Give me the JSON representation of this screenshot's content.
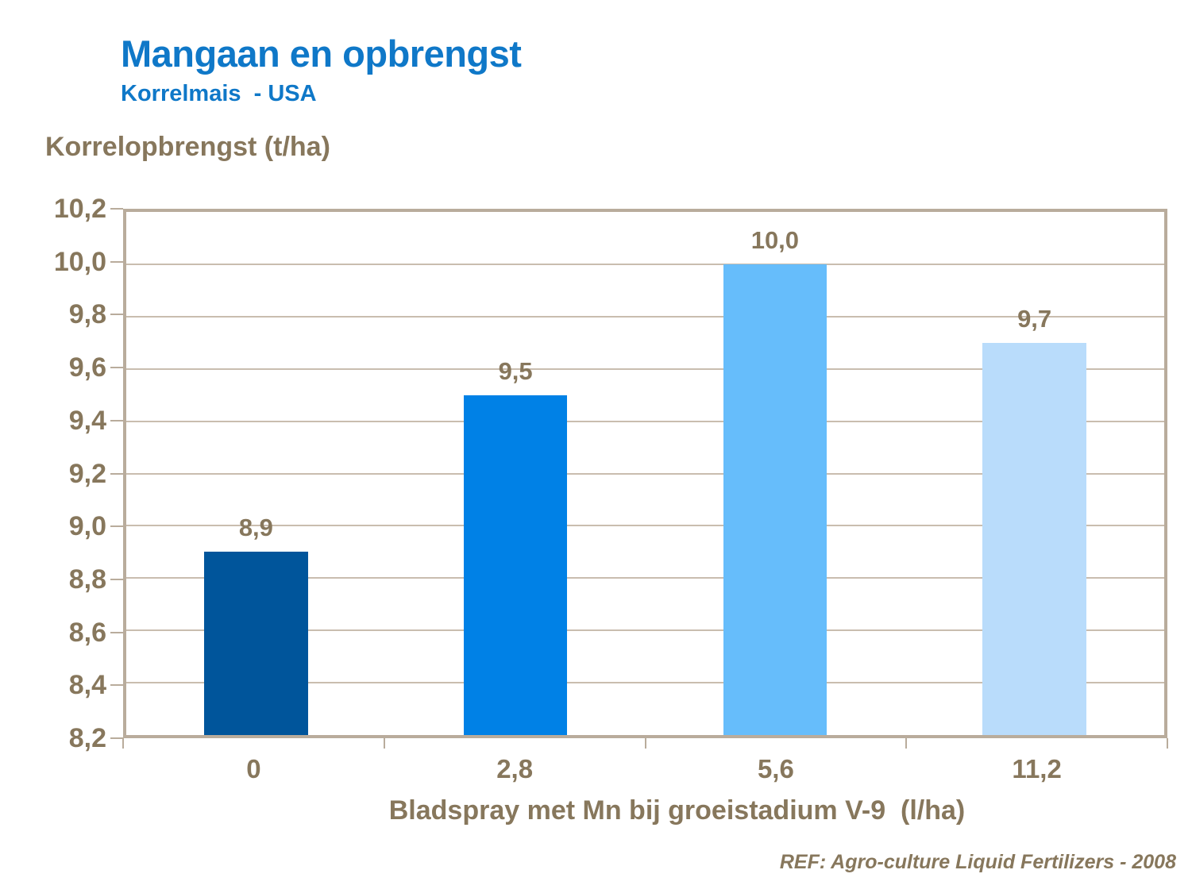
{
  "header": {
    "title": "Mangaan en opbrengst",
    "subtitle": "Korrelmais  - USA"
  },
  "footer": {
    "reference": "REF: Agro-culture Liquid Fertilizers - 2008"
  },
  "chart_data": {
    "type": "bar",
    "title": "Mangaan en opbrengst",
    "subtitle": "Korrelmais - USA",
    "ylabel": "Korrelopbrengst (t/ha)",
    "xlabel": "Bladspray met Mn bij groeistadium V-9  (l/ha)",
    "categories": [
      "0",
      "2,8",
      "5,6",
      "11,2"
    ],
    "values": [
      8.9,
      9.5,
      10.0,
      9.7
    ],
    "value_labels": [
      "8,9",
      "9,5",
      "10,0",
      "9,7"
    ],
    "ylim": [
      8.2,
      10.2
    ],
    "ytick_step": 0.2,
    "ytick_labels": [
      "8,2",
      "8,4",
      "8,6",
      "8,8",
      "9,0",
      "9,2",
      "9,4",
      "9,6",
      "9,8",
      "10,0",
      "10,2"
    ],
    "bar_colors": [
      "#00559B",
      "#0081E6",
      "#66BDFB",
      "#B9DCFB"
    ],
    "bar_width_fraction": 0.4,
    "grid": true,
    "legend": false
  },
  "colors": {
    "title_blue": "#0F78C8",
    "text_brown": "#87775C",
    "axis_line": "#B9AC9C",
    "gridline": "#C9BDAF",
    "background": "#FFFFFF"
  }
}
